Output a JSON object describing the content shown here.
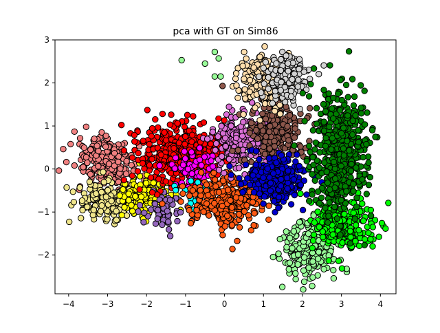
{
  "chart_data": {
    "type": "scatter",
    "title": "pca with GT on Sim86",
    "xlabel": "",
    "ylabel": "",
    "xlim": [
      -4.35,
      4.4
    ],
    "ylim": [
      -2.9,
      3.0
    ],
    "xticks": [
      -4,
      -3,
      -2,
      -1,
      0,
      1,
      2,
      3,
      4
    ],
    "yticks": [
      -2,
      -1,
      0,
      1,
      2,
      3
    ],
    "ytick_labels": [
      "−2",
      "−1",
      "0",
      "1",
      "2",
      "3"
    ],
    "xtick_labels": [
      "−4",
      "−3",
      "−2",
      "−1",
      "0",
      "1",
      "2",
      "3",
      "4"
    ],
    "grid": false,
    "legend": "none",
    "marker_edge_color": "#000000",
    "clusters": [
      {
        "color": "#f08080",
        "center": [
          -3.05,
          0.15
        ],
        "spread": [
          0.38,
          0.3
        ],
        "count": 260
      },
      {
        "color": "#f0e68c",
        "center": [
          -2.95,
          -0.75
        ],
        "spread": [
          0.38,
          0.22
        ],
        "count": 220
      },
      {
        "color": "#ffff00",
        "center": [
          -2.0,
          -0.55
        ],
        "spread": [
          0.3,
          0.25
        ],
        "count": 130
      },
      {
        "color": "#9467bd",
        "center": [
          -1.55,
          -0.95
        ],
        "spread": [
          0.3,
          0.2
        ],
        "count": 60
      },
      {
        "color": "#ff0000",
        "center": [
          -1.1,
          0.35
        ],
        "spread": [
          0.55,
          0.35
        ],
        "count": 420
      },
      {
        "color": "#ff00ff",
        "center": [
          -0.8,
          0.0
        ],
        "spread": [
          0.3,
          0.25
        ],
        "count": 60
      },
      {
        "color": "#00ffff",
        "center": [
          -0.8,
          -0.6
        ],
        "spread": [
          0.25,
          0.2
        ],
        "count": 20
      },
      {
        "color": "#ff5a14",
        "center": [
          0.05,
          -0.75
        ],
        "spread": [
          0.45,
          0.3
        ],
        "count": 320
      },
      {
        "color": "#da70d6",
        "center": [
          0.4,
          0.65
        ],
        "spread": [
          0.35,
          0.3
        ],
        "count": 260
      },
      {
        "color": "#8c564b",
        "center": [
          1.3,
          0.85
        ],
        "spread": [
          0.35,
          0.3
        ],
        "count": 240
      },
      {
        "color": "#0000cd",
        "center": [
          1.3,
          -0.25
        ],
        "spread": [
          0.4,
          0.28
        ],
        "count": 300
      },
      {
        "color": "#ffdead",
        "center": [
          1.0,
          2.05
        ],
        "spread": [
          0.32,
          0.3
        ],
        "count": 220
      },
      {
        "color": "#d3d3d3",
        "center": [
          1.6,
          2.15
        ],
        "spread": [
          0.3,
          0.28
        ],
        "count": 160
      },
      {
        "color": "#98fb98",
        "center": [
          2.2,
          -1.85
        ],
        "spread": [
          0.35,
          0.3
        ],
        "count": 260
      },
      {
        "color": "#00ff00",
        "center": [
          3.05,
          -1.25
        ],
        "spread": [
          0.4,
          0.3
        ],
        "count": 240
      },
      {
        "color": "#008000",
        "center": [
          2.95,
          0.4
        ],
        "spread": [
          0.38,
          0.75
        ],
        "count": 520
      }
    ],
    "outliers": [
      {
        "color": "#98fb98",
        "x": -1.1,
        "y": 2.53
      },
      {
        "color": "#98fb98",
        "x": -0.5,
        "y": 2.45
      },
      {
        "color": "#98fb98",
        "x": -0.25,
        "y": 2.72
      },
      {
        "color": "#98fb98",
        "x": -0.15,
        "y": 2.57
      },
      {
        "color": "#98fb98",
        "x": -0.25,
        "y": 2.15
      },
      {
        "color": "#98fb98",
        "x": -0.1,
        "y": 2.15
      },
      {
        "color": "#8c564b",
        "x": -0.05,
        "y": 1.93
      },
      {
        "color": "#f08080",
        "x": -3.55,
        "y": 0.98
      },
      {
        "color": "#f08080",
        "x": -3.95,
        "y": 0.58
      },
      {
        "color": "#f0e68c",
        "x": -4.05,
        "y": -0.43
      }
    ]
  }
}
